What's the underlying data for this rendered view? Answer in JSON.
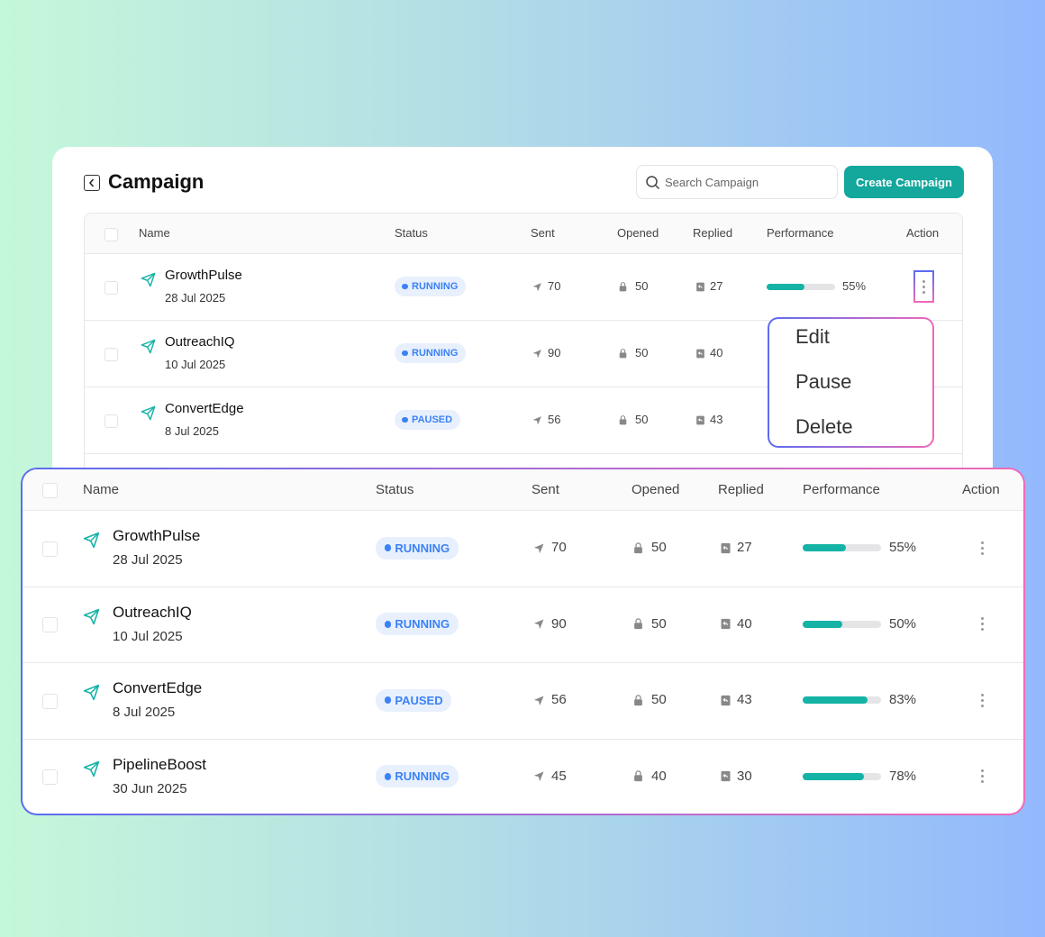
{
  "header": {
    "title": "Campaign",
    "search_placeholder": "Search Campaign",
    "button": "Create Campaign"
  },
  "table": {
    "columns": [
      "Name",
      "Status",
      "Sent",
      "Opened",
      "Replied",
      "Performance",
      "Action"
    ],
    "rows": [
      {
        "name": "GrowthPulse",
        "date": "28 Jul 2025",
        "status": "RUNNING",
        "sent": 70,
        "opened": 50,
        "replied": 27,
        "performance": 55,
        "performance_label": "55%"
      },
      {
        "name": "OutreachIQ",
        "date": "10 Jul 2025",
        "status": "RUNNING",
        "sent": 90,
        "opened": 50,
        "replied": 40,
        "performance": 50,
        "performance_label": "50%"
      },
      {
        "name": "ConvertEdge",
        "date": "8 Jul 2025",
        "status": "PAUSED",
        "sent": 56,
        "opened": 50,
        "replied": 43,
        "performance": 83,
        "performance_label": "83%"
      },
      {
        "name": "PipelineBoost",
        "date": "30 Jun 2025",
        "status": "RUNNING",
        "sent": 45,
        "opened": 40,
        "replied": 30,
        "performance": 78,
        "performance_label": "78%"
      }
    ]
  },
  "menu": {
    "items": [
      "Edit",
      "Pause",
      "Delete"
    ]
  }
}
